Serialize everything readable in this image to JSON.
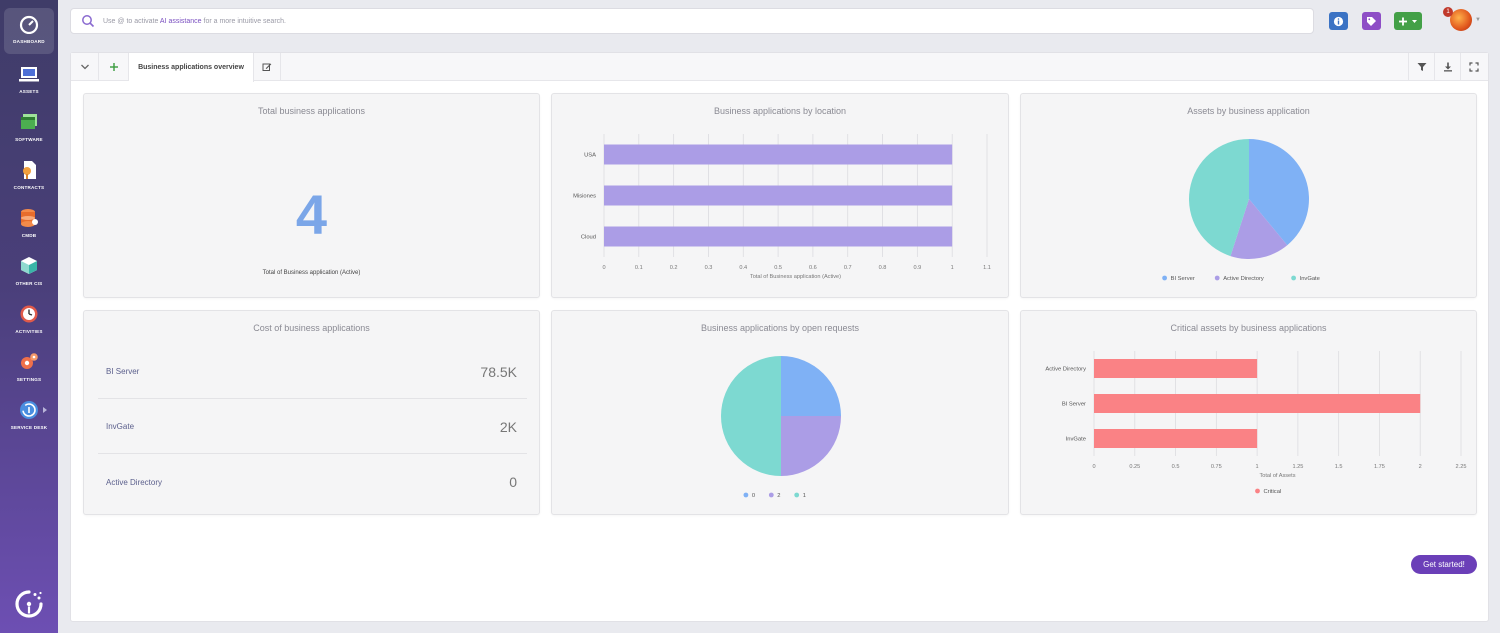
{
  "sidebar": {
    "items": [
      {
        "label": "DASHBOARD",
        "icon": "dashboard-icon"
      },
      {
        "label": "ASSETS",
        "icon": "laptop-icon"
      },
      {
        "label": "SOFTWARE",
        "icon": "software-icon"
      },
      {
        "label": "CONTRACTS",
        "icon": "contracts-icon"
      },
      {
        "label": "CMDB",
        "icon": "database-icon"
      },
      {
        "label": "OTHER CIS",
        "icon": "boxes-icon"
      },
      {
        "label": "ACTIVITIES",
        "icon": "clock-icon"
      },
      {
        "label": "SETTINGS",
        "icon": "gears-icon"
      },
      {
        "label": "SERVICE DESK",
        "icon": "service-desk-icon"
      }
    ]
  },
  "search": {
    "prefix": "Use @ to activate ",
    "highlight": "AI assistance",
    "suffix": " for a more intuitive search."
  },
  "topbar": {
    "notification_count": "1"
  },
  "tabs": {
    "active_label": "Business applications overview"
  },
  "cards": {
    "total": {
      "title": "Total business applications",
      "value": "4",
      "subtitle": "Total of Business application (Active)"
    },
    "cost": {
      "title": "Cost of business applications",
      "rows": [
        {
          "name": "BI Server",
          "value": "78.5K"
        },
        {
          "name": "InvGate",
          "value": "2K"
        },
        {
          "name": "Active Directory",
          "value": "0"
        }
      ]
    }
  },
  "colors": {
    "purple_bar": "#ab9de6",
    "blue": "#7fb1f5",
    "lavender": "#ab9de6",
    "teal": "#7dd9d1",
    "red": "#fa8285",
    "accent": "#6b3fb8"
  },
  "chart_data": [
    {
      "id": "by-location",
      "type": "bar",
      "orientation": "horizontal",
      "title": "Business applications by location",
      "categories": [
        "USA",
        "Misiones",
        "Cloud"
      ],
      "values": [
        1,
        1,
        1
      ],
      "xlabel": "Total of Business application (Active)",
      "xlim": [
        0,
        1.1
      ],
      "ticks": [
        "0",
        "0.1",
        "0.2",
        "0.3",
        "0.4",
        "0.5",
        "0.6",
        "0.7",
        "0.8",
        "0.9",
        "1",
        "1.1"
      ]
    },
    {
      "id": "assets-by-app",
      "type": "pie",
      "title": "Assets by business application",
      "labels": [
        "BI Server",
        "Active Directory",
        "InvGate"
      ],
      "values": [
        3.9,
        1.6,
        4.5
      ],
      "colors": [
        "#7fb1f5",
        "#ab9de6",
        "#7dd9d1"
      ]
    },
    {
      "id": "by-open-requests",
      "type": "pie",
      "title": "Business applications by open requests",
      "labels": [
        "0",
        "2",
        "1"
      ],
      "values": [
        1,
        1,
        2
      ],
      "colors": [
        "#7fb1f5",
        "#ab9de6",
        "#7dd9d1"
      ]
    },
    {
      "id": "critical-assets",
      "type": "bar",
      "orientation": "horizontal",
      "title": "Critical assets by business applications",
      "categories": [
        "Active Directory",
        "BI Server",
        "InvGate"
      ],
      "series": [
        {
          "name": "Critical",
          "values": [
            1,
            2,
            1
          ]
        }
      ],
      "xlabel": "Total of Assets",
      "xlim": [
        0,
        2.25
      ],
      "ticks": [
        "0",
        "0.25",
        "0.5",
        "0.75",
        "1",
        "1.25",
        "1.5",
        "1.75",
        "2",
        "2.25"
      ]
    }
  ],
  "cta": {
    "label": "Get started!"
  }
}
